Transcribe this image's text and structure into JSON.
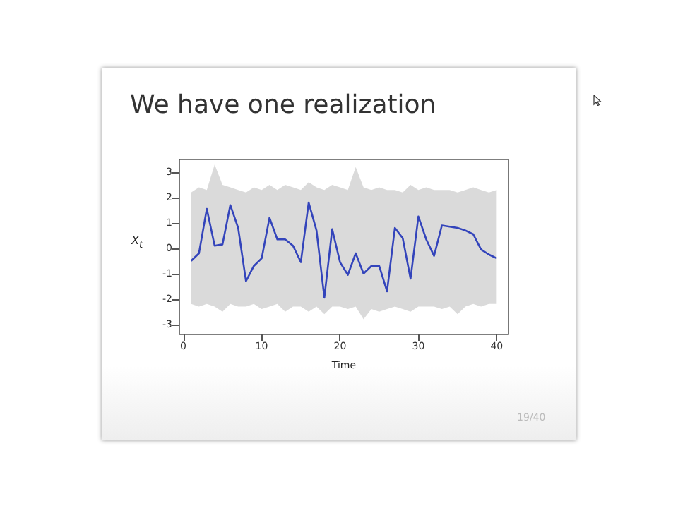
{
  "chart_data": {
    "type": "line",
    "title": "We have one realization",
    "xlabel": "Time",
    "ylabel": "X$_{t}$",
    "annotations": [
      "19/40"
    ],
    "x": [
      1,
      2,
      3,
      4,
      5,
      6,
      7,
      8,
      9,
      10,
      11,
      12,
      13,
      14,
      15,
      16,
      17,
      18,
      19,
      20,
      21,
      22,
      23,
      24,
      25,
      26,
      27,
      28,
      29,
      30,
      31,
      32,
      33,
      34,
      35,
      36,
      37,
      38,
      39,
      40
    ],
    "series": [
      {
        "color": "#3344bb",
        "values": [
          -0.5,
          -0.2,
          1.55,
          0.1,
          0.15,
          1.7,
          0.8,
          -1.3,
          -0.7,
          -0.4,
          1.2,
          0.35,
          0.35,
          0.1,
          -0.55,
          1.8,
          0.7,
          -1.95,
          0.75,
          -0.55,
          -1.05,
          -0.2,
          -1.0,
          -0.7,
          -0.7,
          -1.7,
          0.8,
          0.4,
          -1.2,
          1.25,
          0.35,
          -0.3,
          0.9,
          0.85,
          0.8,
          0.7,
          0.55,
          -0.05,
          -0.25,
          -0.4
        ],
        "lower": [
          -2.2,
          -2.3,
          -2.2,
          -2.3,
          -2.5,
          -2.2,
          -2.3,
          -2.3,
          -2.2,
          -2.4,
          -2.3,
          -2.2,
          -2.5,
          -2.3,
          -2.3,
          -2.5,
          -2.3,
          -2.6,
          -2.3,
          -2.3,
          -2.4,
          -2.3,
          -2.8,
          -2.4,
          -2.5,
          -2.4,
          -2.3,
          -2.4,
          -2.5,
          -2.3,
          -2.3,
          -2.3,
          -2.4,
          -2.3,
          -2.6,
          -2.3,
          -2.2,
          -2.3,
          -2.2,
          -2.2
        ],
        "upper": [
          2.2,
          2.4,
          2.3,
          3.3,
          2.5,
          2.4,
          2.3,
          2.2,
          2.4,
          2.3,
          2.5,
          2.3,
          2.5,
          2.4,
          2.3,
          2.6,
          2.4,
          2.3,
          2.5,
          2.4,
          2.3,
          3.2,
          2.4,
          2.3,
          2.4,
          2.3,
          2.3,
          2.2,
          2.5,
          2.3,
          2.4,
          2.3,
          2.3,
          2.3,
          2.2,
          2.3,
          2.4,
          2.3,
          2.2,
          2.3
        ]
      }
    ],
    "xlim": [
      -0.5,
      41.5
    ],
    "xticks": [
      0,
      10,
      20,
      30,
      40
    ],
    "ylim": [
      -3.4,
      3.5
    ],
    "yticks": [
      -3,
      -2,
      -1,
      0,
      1,
      2,
      3
    ],
    "grid": false,
    "marker": "none",
    "line_style": "solid"
  }
}
